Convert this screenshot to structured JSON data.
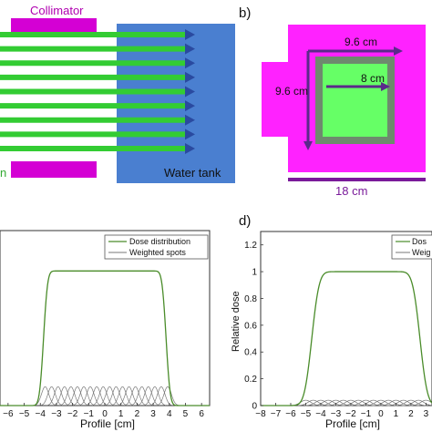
{
  "panel_a": {
    "collimator_label": "Collimator",
    "tank_label": "Water tank",
    "edge_fragment": "n",
    "colors": {
      "collimator": "#d400d4",
      "beam": "#33cc33",
      "tank": "#4a7fd0",
      "arrow_head": "#2a4aa0"
    },
    "beam_count": 9
  },
  "panel_b": {
    "label": "b)",
    "outer_width_label": "9.6 cm",
    "outer_height_label": "9.6 cm",
    "inner_label": "8 cm",
    "bottom_label": "18 cm",
    "colors": {
      "field": "#ff22ff",
      "ring": "#6e8a6e",
      "core": "#66ff66",
      "arrow": "#5b2a8a",
      "bar": "#7a1a9a"
    }
  },
  "chart_data": [
    {
      "type": "line",
      "xlabel": "Profile [cm]",
      "x_ticks": [
        "−6",
        "−5",
        "−4",
        "−3",
        "−2",
        "−1",
        "0",
        "1",
        "2",
        "3",
        "4",
        "5",
        "6"
      ],
      "xlim": [
        -6.5,
        6.5
      ],
      "ylim": [
        0,
        1.3
      ],
      "legend": [
        "Dose distribution",
        "Weighted spots"
      ],
      "legend_position": "top-right",
      "series": [
        {
          "name": "Dose distribution",
          "color": "#4a8c2a",
          "plateau": 1.0,
          "edges": [
            -3.8,
            3.8
          ],
          "edge_width": 0.28
        },
        {
          "name": "Weighted spots",
          "color": "#777777",
          "spot_peak": 0.14,
          "spot_centers": [
            -3.7,
            -3.3,
            -2.9,
            -2.5,
            -2.1,
            -1.7,
            -1.3,
            -0.9,
            -0.5,
            -0.1,
            0.3,
            0.7,
            1.1,
            1.5,
            1.9,
            2.3,
            2.7,
            3.1,
            3.5,
            3.9
          ],
          "spot_sigma": 0.23
        }
      ]
    },
    {
      "type": "line",
      "label": "d)",
      "xlabel": "Profile [cm]",
      "ylabel": "Relative dose",
      "x_ticks": [
        "−8",
        "−7",
        "−6",
        "−5",
        "−4",
        "−3",
        "−2",
        "−1",
        "0",
        "1",
        "2",
        "3"
      ],
      "y_ticks": [
        "0",
        "0.2",
        "0.4",
        "0.6",
        "0.8",
        "1",
        "1.2"
      ],
      "xlim": [
        -8,
        3.4
      ],
      "ylim": [
        0,
        1.3
      ],
      "legend": [
        "Dos",
        "Weig"
      ],
      "legend_position": "top-right",
      "series": [
        {
          "name": "Dos",
          "color": "#4a8c2a",
          "plateau": 1.0,
          "edges": [
            -4.6,
            2.6
          ],
          "edge_width": 0.55
        },
        {
          "name": "Weig",
          "color": "#777777",
          "spot_peak": 0.04,
          "spot_centers": [
            -5.0,
            -4.5,
            -4.0,
            -3.5,
            -3.0,
            -2.5,
            -2.0,
            -1.5,
            -1.0,
            -0.5,
            0.0,
            0.5,
            1.0,
            1.5,
            2.0,
            2.5,
            3.0
          ],
          "spot_sigma": 0.35
        }
      ]
    }
  ]
}
